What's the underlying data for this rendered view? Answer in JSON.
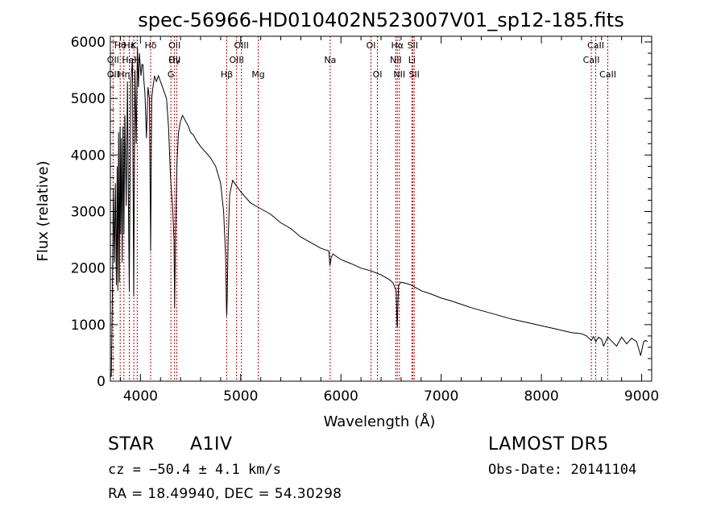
{
  "chart_data": {
    "type": "line",
    "title": "spec-56966-HD010402N523007V01_sp12-185.fits",
    "xlabel": "Wavelength (Å)",
    "ylabel": "Flux (relative)",
    "xlim": [
      3700,
      9100
    ],
    "ylim": [
      0,
      6100
    ],
    "xticks": [
      4000,
      5000,
      6000,
      7000,
      8000,
      9000
    ],
    "yticks": [
      0,
      1000,
      2000,
      3000,
      4000,
      5000,
      6000
    ],
    "grid": false,
    "series": [
      {
        "x": [
          3700,
          3710,
          3720,
          3730,
          3740,
          3750,
          3760,
          3768,
          3775,
          3782,
          3790,
          3797,
          3803,
          3810,
          3818,
          3826,
          3835,
          3845,
          3858,
          3870,
          3880,
          3889,
          3895,
          3905,
          3920,
          3933,
          3945,
          3958,
          3970,
          3980,
          3990,
          4005,
          4015,
          4025,
          4035,
          4045,
          4060,
          4075,
          4090,
          4102,
          4112,
          4125,
          4140,
          4160,
          4180,
          4200,
          4220,
          4240,
          4260,
          4280,
          4300,
          4320,
          4335,
          4341,
          4350,
          4365,
          4380,
          4400,
          4420,
          4450,
          4480,
          4500,
          4530,
          4560,
          4600,
          4650,
          4700,
          4750,
          4800,
          4830,
          4850,
          4858,
          4861,
          4866,
          4875,
          4890,
          4920,
          4960,
          5000,
          5050,
          5100,
          5150,
          5200,
          5300,
          5400,
          5500,
          5600,
          5700,
          5800,
          5850,
          5880,
          5890,
          5896,
          5902,
          5920,
          5960,
          6000,
          6100,
          6200,
          6300,
          6400,
          6480,
          6520,
          6550,
          6560,
          6563,
          6567,
          6575,
          6600,
          6650,
          6700,
          6750,
          6800,
          6900,
          7000,
          7100,
          7200,
          7300,
          7400,
          7500,
          7600,
          7700,
          7800,
          7900,
          8000,
          8100,
          8200,
          8300,
          8400,
          8450,
          8498,
          8520,
          8542,
          8570,
          8600,
          8620,
          8662,
          8700,
          8750,
          8800,
          8850,
          8900,
          8950,
          8990,
          9020,
          9040,
          9060
        ],
        "y": [
          120,
          80,
          1500,
          3400,
          2100,
          3500,
          1700,
          3800,
          1600,
          4400,
          1750,
          4500,
          2600,
          4300,
          2100,
          4500,
          2600,
          4700,
          3100,
          5300,
          3200,
          1600,
          3300,
          5300,
          5700,
          1500,
          5500,
          4200,
          5900,
          5200,
          5800,
          5400,
          5600,
          5600,
          5300,
          5100,
          4300,
          5200,
          5000,
          2300,
          5000,
          5200,
          5400,
          5300,
          5400,
          5300,
          5200,
          5100,
          5000,
          4500,
          3600,
          3100,
          2500,
          1300,
          2600,
          3900,
          4400,
          4600,
          4700,
          4600,
          4500,
          4400,
          4350,
          4250,
          4150,
          4050,
          3950,
          3800,
          3500,
          3000,
          2200,
          1300,
          1150,
          1500,
          2500,
          3300,
          3550,
          3450,
          3350,
          3250,
          3150,
          3100,
          3050,
          2950,
          2800,
          2700,
          2550,
          2450,
          2350,
          2320,
          2300,
          2050,
          2100,
          2180,
          2250,
          2200,
          2150,
          2080,
          2000,
          1950,
          1880,
          1800,
          1740,
          1600,
          1000,
          950,
          1300,
          1700,
          1750,
          1730,
          1700,
          1650,
          1600,
          1540,
          1470,
          1420,
          1360,
          1300,
          1250,
          1200,
          1150,
          1100,
          1060,
          1020,
          980,
          940,
          900,
          860,
          840,
          800,
          720,
          790,
          700,
          780,
          740,
          620,
          780,
          710,
          620,
          780,
          660,
          760,
          700,
          450,
          700,
          720,
          700
        ]
      }
    ],
    "line_labels": [
      {
        "text": "Hθ",
        "x": 3798,
        "row": 0
      },
      {
        "text": "K",
        "x": 3934,
        "row": 0
      },
      {
        "text": "Hδ",
        "x": 4102,
        "row": 0
      },
      {
        "text": "OII",
        "x": 4340,
        "row": 0
      },
      {
        "text": "OIII",
        "x": 5007,
        "row": 0
      },
      {
        "text": "OI",
        "x": 6300,
        "row": 0
      },
      {
        "text": "Hα",
        "x": 6563,
        "row": 0
      },
      {
        "text": "SII",
        "x": 6716,
        "row": 0
      },
      {
        "text": "CaII",
        "x": 8542,
        "row": 0
      },
      {
        "text": "OII",
        "x": 3727,
        "row": 1
      },
      {
        "text": "HeI",
        "x": 3889,
        "row": 1
      },
      {
        "text": "H",
        "x": 3968,
        "row": 1
      },
      {
        "text": "OII",
        "x": 4340,
        "row": 1
      },
      {
        "text": "OIII",
        "x": 4959,
        "row": 1
      },
      {
        "text": "Na",
        "x": 5893,
        "row": 1
      },
      {
        "text": "NII",
        "x": 6548,
        "row": 1
      },
      {
        "text": "Li",
        "x": 6708,
        "row": 1
      },
      {
        "text": "CaII",
        "x": 8498,
        "row": 1
      },
      {
        "text": "OII",
        "x": 3727,
        "row": 2
      },
      {
        "text": "Hη",
        "x": 3835,
        "row": 2
      },
      {
        "text": "G",
        "x": 4304,
        "row": 2
      },
      {
        "text": "Hβ",
        "x": 4861,
        "row": 2
      },
      {
        "text": "Mg",
        "x": 5175,
        "row": 2
      },
      {
        "text": "OI",
        "x": 6364,
        "row": 2
      },
      {
        "text": "NII",
        "x": 6583,
        "row": 2
      },
      {
        "text": "SII",
        "x": 6731,
        "row": 2
      },
      {
        "text": "CaII",
        "x": 8662,
        "row": 2
      },
      {
        "text": "Hε",
        "x": 3889,
        "row": 0
      },
      {
        "text": "Hγ",
        "x": 4340,
        "row": 1
      }
    ],
    "marker_lines": [
      3727,
      3798,
      3835,
      3889,
      3934,
      3968,
      4102,
      4304,
      4340,
      4363,
      4861,
      4959,
      5007,
      5175,
      5893,
      6300,
      6364,
      6548,
      6563,
      6583,
      6708,
      6716,
      6731,
      8498,
      8542,
      8662
    ],
    "colors": {
      "marker_line": "#c00000",
      "spectrum": "#000000",
      "text": "#000000"
    }
  },
  "info": {
    "object_class": "STAR",
    "subclass": "A1IV",
    "survey": "LAMOST DR5",
    "cz": "cz = −50.4 ± 4.1 km/s",
    "obs_date": "Obs-Date: 20141104",
    "coords": "RA =  18.49940, DEC =  54.30298"
  }
}
